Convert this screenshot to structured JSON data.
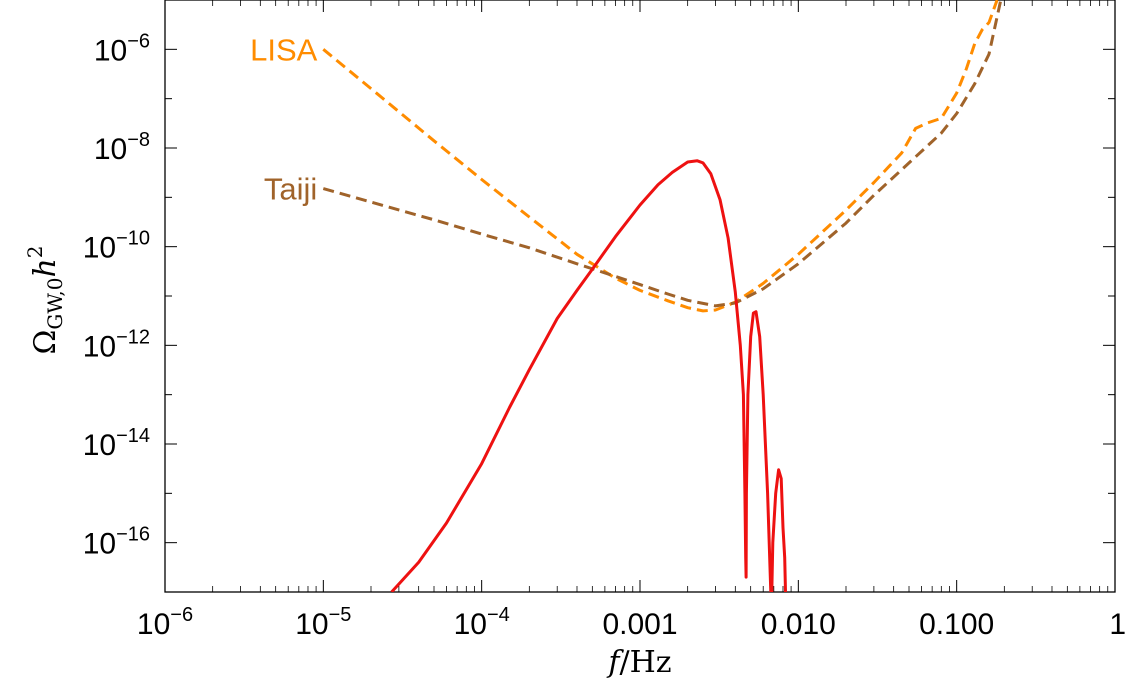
{
  "chart_data": {
    "type": "line",
    "title": "",
    "xlabel": "f/Hz",
    "ylabel_base": "Ω",
    "ylabel_sub": "GW,0",
    "ylabel_tail": "h",
    "ylabel_sup": "2",
    "x_scale": "log",
    "y_scale": "log",
    "xlim": [
      1e-06,
      1
    ],
    "ylim": [
      1e-17,
      1e-05
    ],
    "grid": false,
    "x_ticks": [
      {
        "value": 1e-06,
        "base": "10",
        "exp": "−6"
      },
      {
        "value": 1e-05,
        "base": "10",
        "exp": "−5"
      },
      {
        "value": 0.0001,
        "base": "10",
        "exp": "−4"
      },
      {
        "value": 0.001,
        "base": "0.001",
        "exp": ""
      },
      {
        "value": 0.01,
        "base": "0.010",
        "exp": ""
      },
      {
        "value": 0.1,
        "base": "0.100",
        "exp": ""
      },
      {
        "value": 1,
        "base": "1",
        "exp": ""
      }
    ],
    "y_ticks": [
      {
        "value": 1e-16,
        "base": "10",
        "exp": "−16"
      },
      {
        "value": 1e-14,
        "base": "10",
        "exp": "−14"
      },
      {
        "value": 1e-12,
        "base": "10",
        "exp": "−12"
      },
      {
        "value": 1e-10,
        "base": "10",
        "exp": "−10"
      },
      {
        "value": 1e-08,
        "base": "10",
        "exp": "−8"
      },
      {
        "value": 1e-06,
        "base": "10",
        "exp": "−6"
      }
    ],
    "series": [
      {
        "name": "LISA",
        "color": "#ff8c00",
        "style": "dashed",
        "x": [
          1e-05,
          2e-05,
          5e-05,
          0.0001,
          0.0002,
          0.0004,
          0.0007,
          0.001,
          0.0015,
          0.002,
          0.0025,
          0.003,
          0.004,
          0.006,
          0.01,
          0.02,
          0.03,
          0.045,
          0.055,
          0.065,
          0.08,
          0.1,
          0.115,
          0.13,
          0.145,
          0.16,
          0.18
        ],
        "y": [
          1e-06,
          1.6e-07,
          1.4e-08,
          2.3e-09,
          4e-10,
          7e-11,
          2.3e-11,
          1.3e-11,
          8e-12,
          5.8e-12,
          5e-12,
          5.2e-12,
          7.5e-12,
          1.8e-11,
          7e-11,
          5.5e-10,
          2e-09,
          8e-09,
          2.5e-08,
          3.2e-08,
          4e-08,
          1.3e-07,
          4e-07,
          1.3e-06,
          2.5e-06,
          3.5e-06,
          1e-05
        ]
      },
      {
        "name": "Taiji",
        "color": "#a0632a",
        "style": "dashed",
        "x": [
          1e-05,
          2e-05,
          5e-05,
          0.0001,
          0.0002,
          0.0004,
          0.0007,
          0.001,
          0.0015,
          0.002,
          0.003,
          0.004,
          0.006,
          0.01,
          0.02,
          0.03,
          0.05,
          0.08,
          0.1,
          0.13,
          0.16,
          0.19
        ],
        "y": [
          1.5e-09,
          8e-10,
          3.5e-10,
          1.8e-10,
          9.5e-11,
          4.5e-11,
          2.5e-11,
          1.7e-11,
          1.1e-11,
          8.2e-12,
          6.3e-12,
          7.2e-12,
          1.4e-11,
          4.5e-11,
          3e-10,
          1.1e-09,
          5e-09,
          2e-08,
          5e-08,
          2e-07,
          8e-07,
          1e-05
        ]
      },
      {
        "name": "",
        "color": "#ee1111",
        "style": "solid",
        "x": [
          2.7e-05,
          4e-05,
          6e-05,
          0.0001,
          0.00015,
          0.0002,
          0.0003,
          0.0004,
          0.0005,
          0.0007,
          0.001,
          0.0013,
          0.0016,
          0.002,
          0.0023,
          0.0025,
          0.0028,
          0.0032,
          0.0036,
          0.004,
          0.0043,
          0.0045,
          0.0046,
          0.00465,
          0.00468,
          0.0047,
          0.0048,
          0.005,
          0.0052,
          0.0054,
          0.0057,
          0.006,
          0.0064,
          0.0067,
          0.0068,
          0.0069,
          0.0072,
          0.0075,
          0.0078,
          0.008,
          0.0082,
          0.0083
        ],
        "y": [
          1e-17,
          4e-17,
          2.5e-16,
          4e-15,
          5.5e-14,
          3.2e-13,
          3.5e-12,
          1.3e-11,
          3.5e-11,
          1.6e-10,
          7e-10,
          1.8e-09,
          3.2e-09,
          5.2e-09,
          5.5e-09,
          5e-09,
          3e-09,
          9e-10,
          1.5e-10,
          1.2e-11,
          1e-12,
          1e-13,
          1e-15,
          5e-17,
          2e-17,
          1e-15,
          1e-13,
          1.5e-12,
          4.5e-12,
          4.8e-12,
          1.5e-12,
          1e-13,
          1e-15,
          1e-17,
          1e-17,
          1e-16,
          1e-15,
          3e-15,
          2e-15,
          2e-16,
          5e-17,
          1e-17
        ]
      }
    ],
    "annotations": [
      {
        "text": "LISA",
        "series": 0
      },
      {
        "text": "Taiji",
        "series": 1
      }
    ]
  }
}
